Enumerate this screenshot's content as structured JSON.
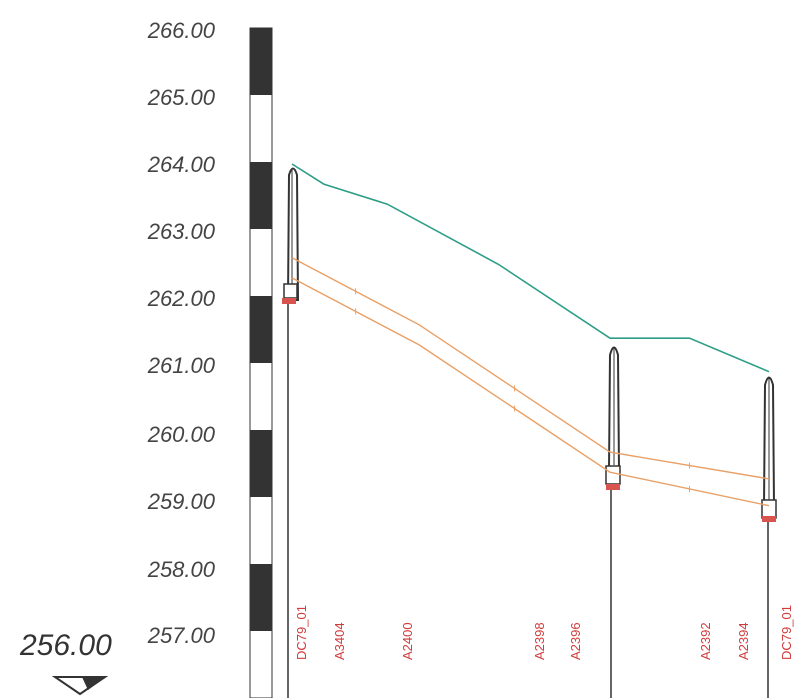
{
  "elevation_scale": {
    "labels": [
      "266.00",
      "265.00",
      "264.00",
      "263.00",
      "262.00",
      "261.00",
      "260.00",
      "259.00",
      "258.00",
      "257.00"
    ],
    "datum_label": "256.00"
  },
  "chambers": [
    {
      "id": "DC79_01",
      "top": 264.0,
      "invert": 262.0,
      "label": "DC79_01"
    },
    {
      "id": "mid",
      "top": 261.4,
      "invert": 259.2,
      "label": ""
    },
    {
      "id": "DC79_01b",
      "top": 260.9,
      "invert": 258.8,
      "label": "DC79_01"
    }
  ],
  "section_labels": [
    "A3404",
    "A2400",
    "A2398",
    "A2396",
    "A2392",
    "A2394"
  ],
  "chart_data": {
    "type": "line",
    "ylim": [
      256,
      266
    ],
    "ground_series": {
      "x": [
        0,
        10,
        30,
        65,
        100,
        110,
        125,
        150
      ],
      "y": [
        264.0,
        263.7,
        263.4,
        262.5,
        261.4,
        261.4,
        261.4,
        260.9
      ]
    },
    "pipe_top_series": {
      "x": [
        0,
        40,
        100,
        150
      ],
      "y": [
        262.6,
        261.6,
        259.7,
        259.3
      ]
    },
    "pipe_invert_series": {
      "x": [
        0,
        40,
        100,
        150
      ],
      "y": [
        262.3,
        261.3,
        259.4,
        258.9
      ]
    },
    "colors": {
      "ground": "#2e9e87",
      "pipe": "#e8a066",
      "node": "#d9534f",
      "chamber": "#333333"
    }
  }
}
